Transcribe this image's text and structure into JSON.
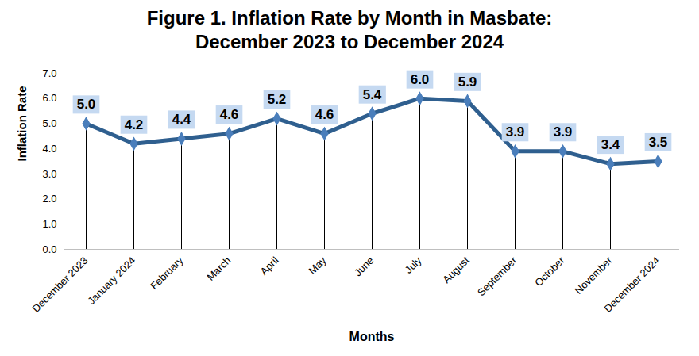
{
  "chart_data": {
    "type": "line",
    "title": "Figure 1. Inflation Rate by Month in Masbate:\nDecember 2023 to December 2024",
    "x_label": "Months",
    "y_label": "Inflation Rate",
    "categories": [
      "December 2023",
      "January 2024",
      "February",
      "March",
      "April",
      "May",
      "June",
      "July",
      "August",
      "September",
      "October",
      "November",
      "December 2024"
    ],
    "values": [
      5.0,
      4.2,
      4.4,
      4.6,
      5.2,
      4.6,
      5.4,
      6.0,
      5.9,
      3.9,
      3.9,
      3.4,
      3.5
    ],
    "value_labels": [
      "5.0",
      "4.2",
      "4.4",
      "4.6",
      "5.2",
      "4.6",
      "5.4",
      "6.0",
      "5.9",
      "3.9",
      "3.9",
      "3.4",
      "3.5"
    ],
    "color": "#2f5f8f",
    "marker": "diamond",
    "data_labels": true,
    "grid": false,
    "ylim": [
      0,
      7
    ],
    "yticks": [
      {
        "value": 0,
        "label": "0.0"
      },
      {
        "value": 1,
        "label": "1.0"
      },
      {
        "value": 2,
        "label": "2.0"
      },
      {
        "value": 3,
        "label": "3.0"
      },
      {
        "value": 4,
        "label": "4.0"
      },
      {
        "value": 5,
        "label": "5.0"
      },
      {
        "value": 6,
        "label": "6.0"
      },
      {
        "value": 7,
        "label": "7.0"
      }
    ]
  }
}
